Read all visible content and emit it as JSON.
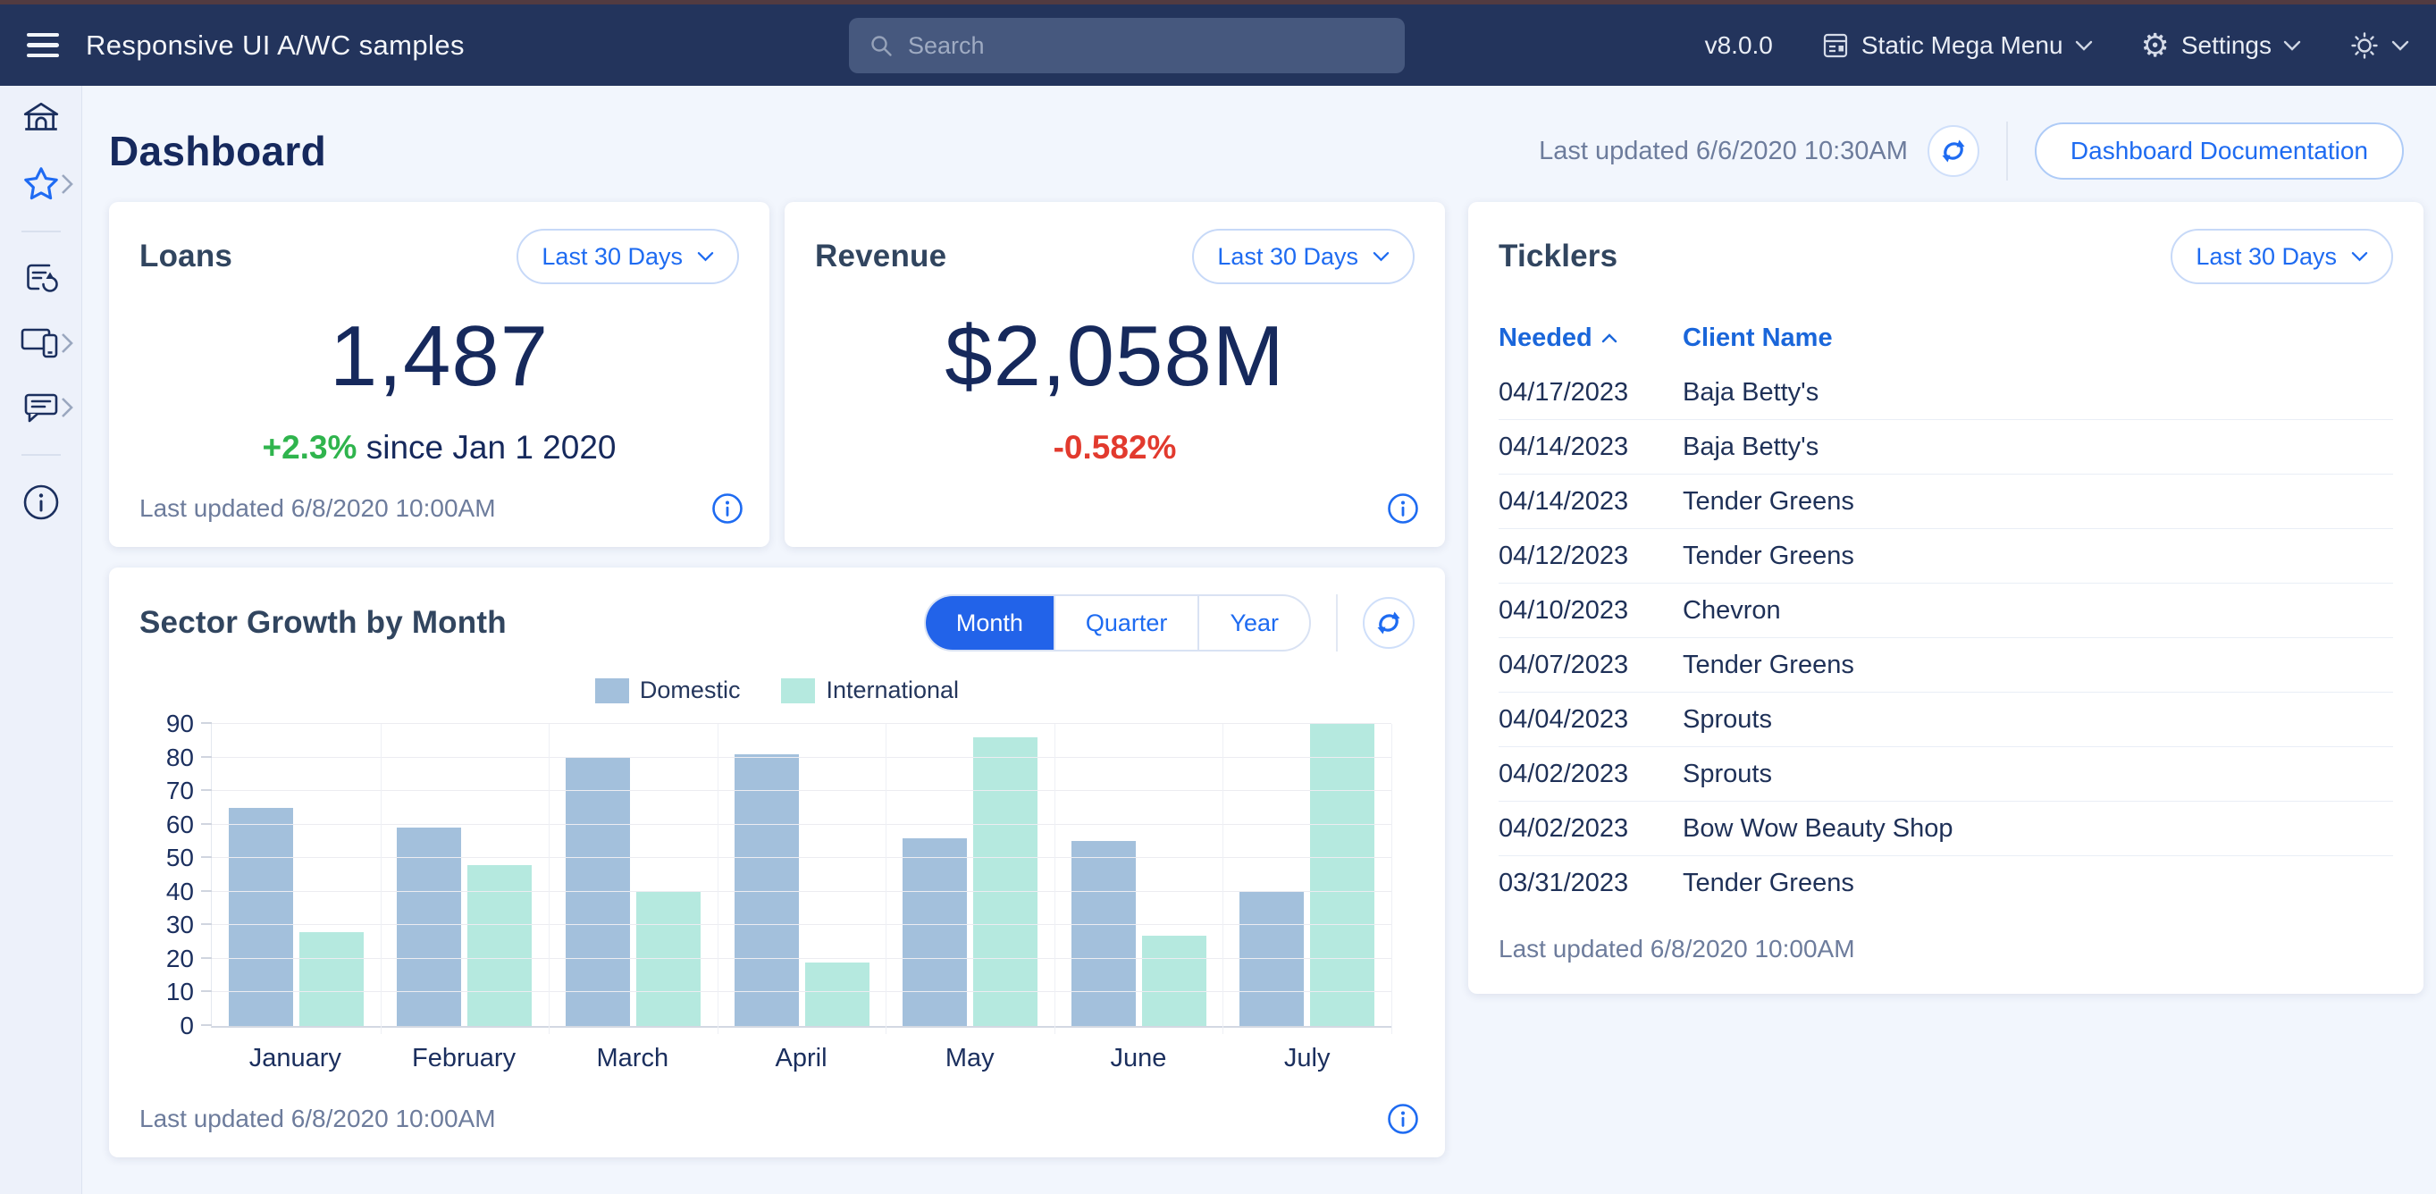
{
  "navbar": {
    "title": "Responsive UI A/WC samples",
    "search_placeholder": "Search",
    "version": "v8.0.0",
    "mega_menu_label": "Static Mega Menu",
    "settings_label": "Settings"
  },
  "header": {
    "title": "Dashboard",
    "last_updated": "Last updated 6/6/2020 10:30AM",
    "doc_button_label": "Dashboard Documentation"
  },
  "loans": {
    "title": "Loans",
    "range_label": "Last 30 Days",
    "value": "1,487",
    "delta": "+2.3%",
    "delta_suffix": "since Jan 1 2020",
    "last_updated": "Last updated 6/8/2020 10:00AM"
  },
  "revenue": {
    "title": "Revenue",
    "range_label": "Last 30 Days",
    "value": "$2,058M",
    "delta": "-0.582%"
  },
  "chart_card": {
    "title": "Sector Growth by Month",
    "toggle_options": [
      "Month",
      "Quarter",
      "Year"
    ],
    "active_toggle": "Month",
    "last_updated": "Last updated 6/8/2020 10:00AM"
  },
  "chart_data": {
    "type": "bar",
    "title": "Sector Growth by Month",
    "categories": [
      "January",
      "February",
      "March",
      "April",
      "May",
      "June",
      "July"
    ],
    "series": [
      {
        "name": "Domestic",
        "color": "#a3c0dc",
        "values": [
          65,
          59,
          80,
          81,
          56,
          55,
          40
        ]
      },
      {
        "name": "International",
        "color": "#b5e9df",
        "values": [
          28,
          48,
          40,
          19,
          86,
          27,
          90
        ]
      }
    ],
    "ylim": [
      0,
      90
    ],
    "ytick_step": 10,
    "grid": true,
    "legend_position": "top"
  },
  "ticklers": {
    "title": "Ticklers",
    "range_label": "Last 30 Days",
    "columns": [
      "Needed",
      "Client Name"
    ],
    "sort_column": "Needed",
    "sort_direction": "asc",
    "rows": [
      {
        "needed": "04/17/2023",
        "client": "Baja Betty's"
      },
      {
        "needed": "04/14/2023",
        "client": "Baja Betty's"
      },
      {
        "needed": "04/14/2023",
        "client": "Tender Greens"
      },
      {
        "needed": "04/12/2023",
        "client": "Tender Greens"
      },
      {
        "needed": "04/10/2023",
        "client": "Chevron"
      },
      {
        "needed": "04/07/2023",
        "client": "Tender Greens"
      },
      {
        "needed": "04/04/2023",
        "client": "Sprouts"
      },
      {
        "needed": "04/02/2023",
        "client": "Sprouts"
      },
      {
        "needed": "04/02/2023",
        "client": "Bow Wow Beauty Shop"
      },
      {
        "needed": "03/31/2023",
        "client": "Tender Greens"
      }
    ],
    "last_updated": "Last updated 6/8/2020 10:00AM"
  },
  "colors": {
    "navbar_bg": "#23345c",
    "accent_blue": "#1e6bf1",
    "active_toggle_bg": "#2263e9",
    "positive_green": "#2fb44d",
    "negative_red": "#e23a2e",
    "navy_text": "#16295c",
    "muted_text": "#6d7c9c",
    "domestic_bar": "#a3c0dc",
    "international_bar": "#b5e9df"
  }
}
